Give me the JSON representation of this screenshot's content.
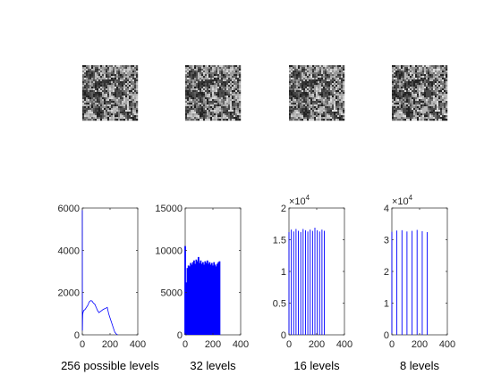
{
  "figure": {
    "background": "#ffffff",
    "axes_color": "#262626",
    "image_panels": [
      {
        "name": "image-original",
        "gray_levels": 256
      },
      {
        "name": "image-32-levels",
        "gray_levels": 32
      },
      {
        "name": "image-16-levels",
        "gray_levels": 16
      },
      {
        "name": "image-8-levels",
        "gray_levels": 8
      }
    ]
  },
  "chart_data": [
    {
      "type": "line",
      "title": "",
      "xlabel": "256 possible levels",
      "ylabel": "",
      "xlim": [
        0,
        400
      ],
      "ylim": [
        0,
        6000
      ],
      "xticks": [
        0,
        200,
        400
      ],
      "yticks": [
        0,
        2000,
        4000,
        6000
      ],
      "ytick_labels": [
        "0",
        "2000",
        "4000",
        "6000"
      ],
      "exponent_label": "",
      "grid": false,
      "color": "#0000ff",
      "x": [
        0,
        1,
        2,
        3,
        5,
        10,
        20,
        30,
        40,
        50,
        60,
        70,
        80,
        90,
        100,
        110,
        120,
        130,
        140,
        150,
        160,
        170,
        180,
        190,
        200,
        210,
        220,
        225,
        230,
        235,
        240,
        245,
        250,
        255
      ],
      "y": [
        5900,
        200,
        700,
        950,
        1050,
        1150,
        1200,
        1300,
        1400,
        1560,
        1620,
        1600,
        1500,
        1450,
        1300,
        1150,
        1050,
        1100,
        1150,
        1200,
        1230,
        1260,
        1300,
        1000,
        800,
        600,
        400,
        300,
        200,
        120,
        80,
        40,
        20,
        0
      ]
    },
    {
      "type": "bar",
      "title": "",
      "xlabel": "32 levels",
      "ylabel": "",
      "xlim": [
        0,
        400
      ],
      "ylim": [
        0,
        15000
      ],
      "xticks": [
        0,
        200,
        400
      ],
      "yticks": [
        0,
        5000,
        10000,
        15000
      ],
      "ytick_labels": [
        "0",
        "5000",
        "10000",
        "15000"
      ],
      "exponent_label": "",
      "grid": false,
      "color": "#0000ff",
      "x": [
        0,
        8,
        16,
        24,
        32,
        40,
        48,
        56,
        64,
        72,
        80,
        88,
        96,
        104,
        112,
        120,
        128,
        136,
        144,
        152,
        160,
        168,
        176,
        184,
        192,
        200,
        208,
        216,
        224,
        232,
        240,
        248
      ],
      "values": [
        10500,
        6200,
        7900,
        8200,
        8100,
        8500,
        8300,
        8600,
        8800,
        8400,
        8900,
        8700,
        9200,
        8500,
        8800,
        8400,
        8600,
        8300,
        8700,
        8500,
        8800,
        8400,
        8600,
        8300,
        8500,
        8200,
        8600,
        8300,
        8100,
        8400,
        8600,
        8700
      ]
    },
    {
      "type": "bar",
      "title": "",
      "xlabel": "16 levels",
      "ylabel": "",
      "xlim": [
        0,
        400
      ],
      "ylim": [
        0,
        20000
      ],
      "xticks": [
        0,
        200,
        400
      ],
      "yticks": [
        0,
        5000,
        10000,
        15000,
        20000
      ],
      "ytick_labels": [
        "0",
        "0.5",
        "1",
        "1.5",
        "2"
      ],
      "exponent_label": "4",
      "grid": false,
      "color": "#0000ff",
      "x": [
        0,
        17,
        34,
        51,
        68,
        85,
        102,
        119,
        136,
        153,
        170,
        187,
        204,
        221,
        238,
        255
      ],
      "values": [
        16200,
        16600,
        16300,
        16700,
        16400,
        16200,
        16700,
        16500,
        16300,
        16600,
        16400,
        16900,
        16500,
        16300,
        16600,
        16400
      ]
    },
    {
      "type": "bar",
      "title": "",
      "xlabel": "8 levels",
      "ylabel": "",
      "xlim": [
        0,
        400
      ],
      "ylim": [
        0,
        40000
      ],
      "xticks": [
        0,
        200,
        400
      ],
      "yticks": [
        0,
        10000,
        20000,
        30000,
        40000
      ],
      "ytick_labels": [
        "0",
        "1",
        "2",
        "3",
        "4"
      ],
      "exponent_label": "4",
      "grid": false,
      "color": "#0000ff",
      "x": [
        0,
        36,
        73,
        109,
        146,
        182,
        219,
        255
      ],
      "values": [
        32500,
        32900,
        33000,
        32600,
        32800,
        33100,
        32700,
        32400
      ]
    }
  ]
}
